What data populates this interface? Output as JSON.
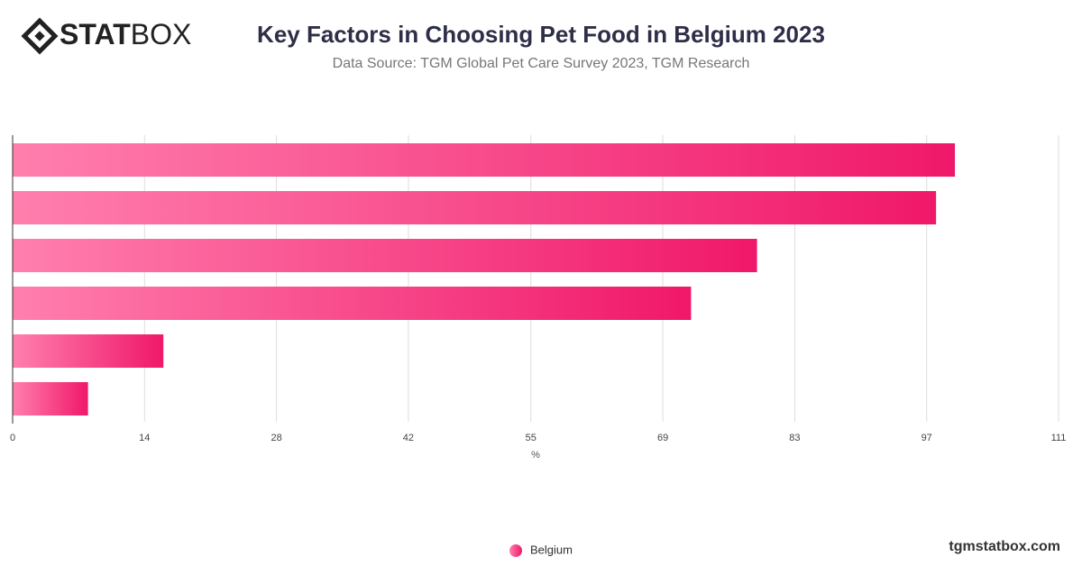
{
  "logo": {
    "bold": "STAT",
    "light": "BOX"
  },
  "footer": "tgmstatbox.com",
  "chart_data": {
    "type": "bar",
    "orientation": "horizontal",
    "title": "Key Factors in Choosing Pet Food in Belgium 2023",
    "subtitle": "Data Source: TGM Global Pet Care Survey 2023, TGM Research",
    "x_label": "%",
    "categories": [
      null,
      null,
      null,
      null,
      null,
      null
    ],
    "series": [
      {
        "name": "Belgium",
        "color": "#f0186a",
        "values": [
          100,
          98,
          79,
          72,
          16,
          8
        ]
      }
    ],
    "xlim": [
      0,
      111
    ],
    "xticks": [
      0,
      14,
      28,
      42,
      55,
      69,
      83,
      97,
      111
    ],
    "grid": true,
    "legend": "bottom"
  }
}
